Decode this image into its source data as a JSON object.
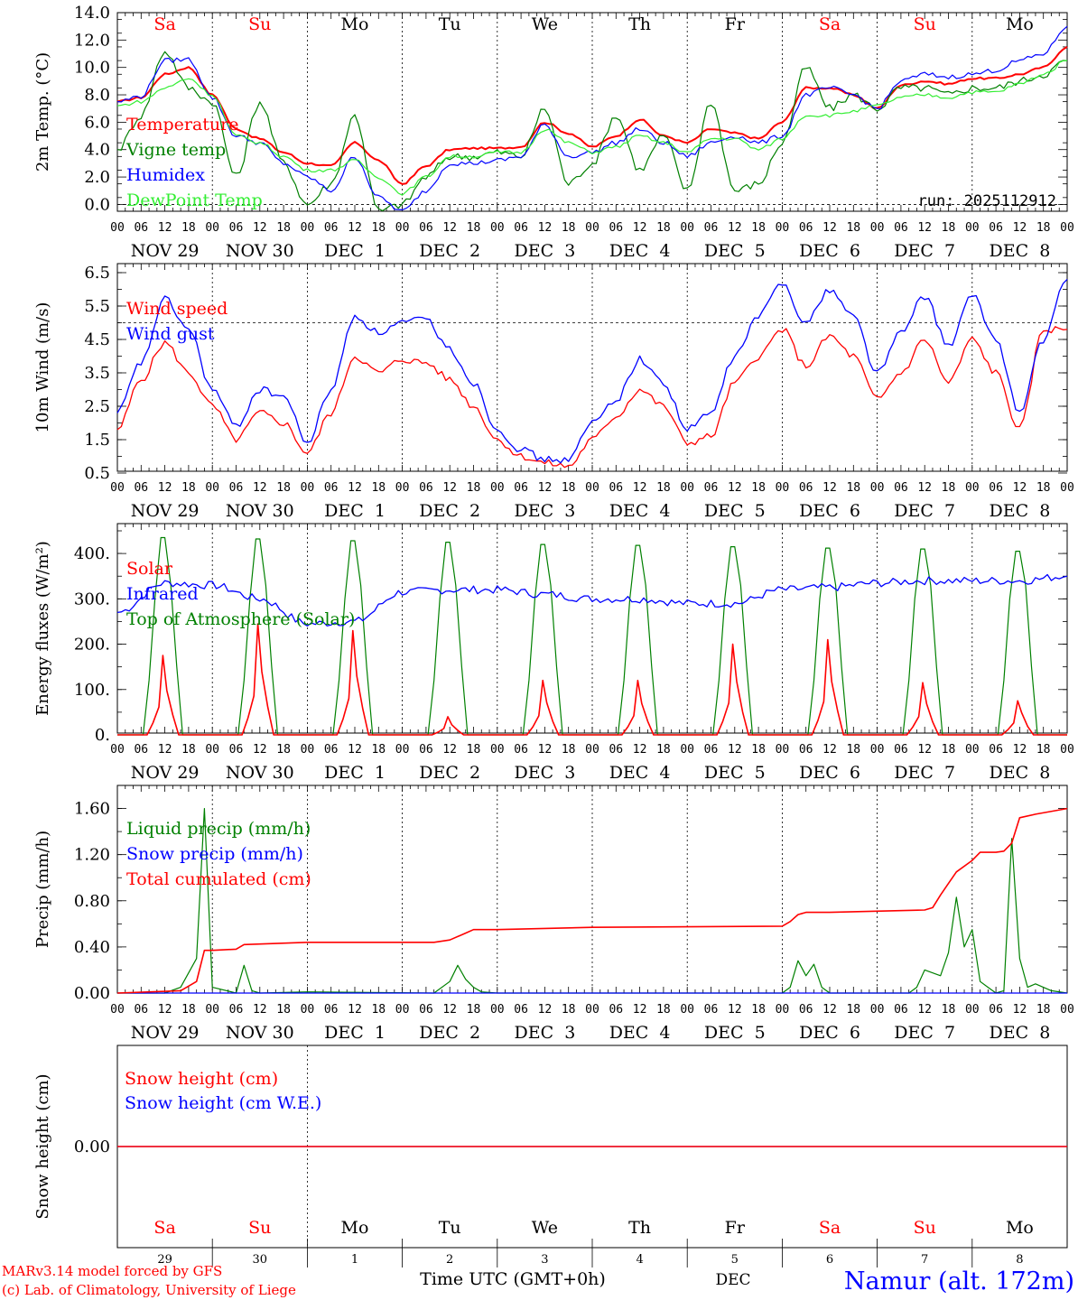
{
  "colors": {
    "red": "#ff0000",
    "green": "#008000",
    "blue": "#0000ff",
    "lightgreen": "#33ee33",
    "black": "#000000"
  },
  "days_top": [
    {
      "label": "Sa",
      "weekend": true
    },
    {
      "label": "Su",
      "weekend": true
    },
    {
      "label": "Mo",
      "weekend": false
    },
    {
      "label": "Tu",
      "weekend": false
    },
    {
      "label": "We",
      "weekend": false
    },
    {
      "label": "Th",
      "weekend": false
    },
    {
      "label": "Fr",
      "weekend": false
    },
    {
      "label": "Sa",
      "weekend": true
    },
    {
      "label": "Su",
      "weekend": true
    },
    {
      "label": "Mo",
      "weekend": false
    }
  ],
  "hour_ticks": [
    "00",
    "06",
    "12",
    "18"
  ],
  "date_labels": [
    "NOV 29",
    "NOV 30",
    "DEC  1",
    "DEC  2",
    "DEC  3",
    "DEC  4",
    "DEC  5",
    "DEC  6",
    "DEC  7",
    "DEC  8"
  ],
  "bottom_day_numbers": [
    "29",
    "30",
    "1",
    "2",
    "3",
    "4",
    "5",
    "6",
    "7",
    "8"
  ],
  "bottom": {
    "xlabel": "Time UTC (GMT+0h)",
    "month": "DEC",
    "credit1": "MARv3.14 model forced by GFS",
    "credit2": "(c) Lab. of Climatology, University of Liege",
    "station": "Namur (alt. 172m)"
  },
  "chart_data": [
    {
      "type": "line",
      "title": "2m Temp. (°C)",
      "ylabel": "2m Temp. (°C)",
      "ylim": [
        -0.5,
        14
      ],
      "yticks": [
        "0.0",
        "2.0",
        "4.0",
        "6.0",
        "8.0",
        "10.0",
        "12.0",
        "14.0"
      ],
      "ytick_values": [
        0,
        2,
        4,
        6,
        8,
        10,
        12,
        14
      ],
      "reference_line": 0,
      "annotation": "run: 2025112912",
      "x_hours": [
        0,
        6,
        12,
        18,
        24,
        30,
        36,
        42,
        48,
        54,
        60,
        66,
        72,
        78,
        84,
        90,
        96,
        102,
        108,
        114,
        120,
        126,
        132,
        138,
        144,
        150,
        156,
        162,
        168,
        174,
        180,
        186,
        192,
        198,
        204,
        210,
        216,
        222,
        228,
        234,
        240
      ],
      "series": [
        {
          "name": "Temperature",
          "color": "red",
          "values": [
            7.5,
            7.8,
            9.5,
            10.0,
            8.0,
            5.5,
            4.8,
            3.8,
            3.0,
            2.8,
            4.5,
            3.2,
            1.5,
            2.8,
            4.0,
            4.1,
            4.1,
            4.2,
            6.0,
            5.2,
            4.2,
            5.0,
            6.2,
            5.0,
            4.5,
            5.5,
            5.2,
            4.8,
            6.0,
            8.5,
            8.5,
            8.0,
            7.0,
            8.7,
            9.0,
            8.8,
            9.2,
            9.2,
            9.5,
            10.0,
            11.5
          ]
        },
        {
          "name": "Vigne temp",
          "color": "green",
          "values": [
            4.0,
            6.5,
            11.2,
            8.5,
            7.5,
            2.0,
            7.5,
            3.0,
            0.0,
            1.5,
            6.5,
            -0.5,
            0.0,
            2.0,
            3.5,
            3.5,
            3.8,
            3.5,
            7.0,
            1.5,
            3.0,
            6.5,
            2.5,
            5.0,
            1.0,
            7.5,
            1.0,
            1.5,
            4.5,
            10.0,
            7.0,
            8.0,
            7.0,
            8.5,
            8.5,
            8.0,
            8.5,
            8.5,
            9.0,
            9.5,
            10.5
          ]
        },
        {
          "name": "Humidex",
          "color": "blue",
          "values": [
            7.5,
            7.9,
            10.5,
            10.6,
            7.8,
            5.0,
            4.5,
            3.0,
            2.0,
            1.0,
            3.5,
            0.5,
            -0.5,
            1.0,
            3.0,
            3.0,
            3.2,
            3.5,
            5.8,
            3.5,
            3.8,
            4.5,
            5.5,
            4.5,
            3.5,
            4.5,
            5.0,
            4.5,
            5.0,
            8.0,
            8.5,
            8.0,
            7.0,
            9.0,
            9.5,
            9.3,
            9.5,
            9.8,
            10.5,
            11.0,
            13.0
          ]
        },
        {
          "name": "DewPoint Temp",
          "color": "lightgreen",
          "values": [
            7.2,
            7.5,
            8.5,
            9.2,
            8.0,
            5.0,
            4.5,
            3.5,
            2.5,
            2.5,
            3.2,
            2.0,
            0.8,
            2.0,
            3.5,
            3.5,
            3.8,
            3.8,
            5.5,
            4.5,
            3.8,
            4.2,
            5.0,
            4.5,
            3.8,
            4.8,
            4.8,
            4.0,
            4.8,
            6.5,
            6.5,
            6.8,
            7.2,
            7.8,
            8.0,
            7.8,
            8.2,
            8.2,
            8.8,
            9.5,
            10.5
          ]
        }
      ]
    },
    {
      "type": "line",
      "title": "10m Wind (m/s)",
      "ylabel": "10m Wind (m/s)",
      "ylim": [
        0.5,
        6.5
      ],
      "yticks": [
        "0.5",
        "1.5",
        "2.5",
        "3.5",
        "4.5",
        "5.5",
        "6.5"
      ],
      "ytick_values": [
        0.5,
        1.5,
        2.5,
        3.5,
        4.5,
        5.5,
        6.5
      ],
      "reference_line": 5,
      "x_hours": [
        0,
        6,
        12,
        18,
        24,
        30,
        36,
        42,
        48,
        54,
        60,
        66,
        72,
        78,
        84,
        90,
        96,
        102,
        108,
        114,
        120,
        126,
        132,
        138,
        144,
        150,
        156,
        162,
        168,
        174,
        180,
        186,
        192,
        198,
        204,
        210,
        216,
        222,
        228,
        234,
        240
      ],
      "series": [
        {
          "name": "Wind speed",
          "color": "red",
          "values": [
            1.8,
            3.3,
            4.4,
            3.5,
            2.5,
            1.5,
            2.3,
            2.0,
            1.1,
            2.3,
            4.0,
            3.5,
            3.9,
            3.8,
            3.3,
            2.5,
            1.5,
            1.0,
            0.8,
            0.7,
            1.5,
            2.2,
            3.0,
            2.5,
            1.4,
            1.6,
            3.2,
            4.0,
            4.8,
            3.7,
            4.6,
            4.0,
            2.7,
            3.5,
            4.5,
            3.2,
            4.5,
            3.5,
            1.8,
            4.8,
            4.8
          ]
        },
        {
          "name": "Wind gust",
          "color": "blue",
          "values": [
            2.3,
            3.8,
            5.7,
            4.8,
            3.0,
            1.9,
            3.0,
            2.8,
            1.4,
            3.0,
            5.2,
            4.7,
            5.0,
            5.1,
            4.2,
            3.2,
            1.8,
            1.2,
            0.9,
            0.9,
            2.0,
            2.7,
            3.9,
            3.2,
            1.8,
            2.3,
            4.0,
            5.2,
            6.2,
            5.0,
            6.0,
            5.2,
            3.5,
            4.7,
            5.8,
            4.3,
            5.8,
            4.5,
            2.3,
            4.5,
            6.3
          ]
        }
      ]
    },
    {
      "type": "line",
      "title": "Energy fluxes (W/m2)",
      "ylabel": "Energy fluxes (W/m²)",
      "ylim": [
        0,
        450
      ],
      "yticks": [
        "0.",
        "100.",
        "200.",
        "300.",
        "400."
      ],
      "ytick_values": [
        0,
        100,
        200,
        300,
        400
      ],
      "series": [
        {
          "name": "Solar",
          "color": "red",
          "day_peaks": [
            175,
            245,
            230,
            40,
            120,
            120,
            200,
            210,
            115,
            75
          ]
        },
        {
          "name": "Infrared",
          "color": "blue",
          "x_hours": [
            0,
            12,
            24,
            36,
            48,
            60,
            72,
            84,
            96,
            108,
            120,
            132,
            144,
            156,
            168,
            180,
            192,
            204,
            216,
            228,
            240
          ],
          "values": [
            270,
            335,
            330,
            300,
            245,
            250,
            315,
            320,
            320,
            310,
            300,
            300,
            290,
            290,
            320,
            325,
            335,
            340,
            340,
            340,
            350
          ]
        },
        {
          "name": "Top of Atmosphere (Solar)",
          "color": "green",
          "day_peaks": [
            435,
            432,
            428,
            425,
            420,
            418,
            415,
            412,
            410,
            405
          ]
        }
      ]
    },
    {
      "type": "line",
      "title": "Precip (mm/h)",
      "ylabel": "Precip (mm/h)",
      "ylim": [
        0,
        1.8
      ],
      "yticks": [
        "0.00",
        "0.40",
        "0.80",
        "1.20",
        "1.60"
      ],
      "ytick_values": [
        0,
        0.4,
        0.8,
        1.2,
        1.6
      ],
      "series": [
        {
          "name": "Liquid precip (mm/h)",
          "color": "green",
          "x_hours": [
            0,
            12,
            16,
            20,
            22,
            24,
            30,
            32,
            34,
            36,
            48,
            80,
            84,
            86,
            88,
            90,
            92,
            96,
            168,
            170,
            172,
            174,
            176,
            178,
            180,
            200,
            202,
            204,
            208,
            210,
            212,
            214,
            216,
            218,
            220,
            222,
            224,
            226,
            228,
            230,
            232,
            236,
            240
          ],
          "values": [
            0,
            0,
            0.05,
            0.3,
            1.6,
            0.05,
            0,
            0.24,
            0.02,
            0,
            0.01,
            0,
            0.1,
            0.24,
            0.12,
            0.05,
            0.01,
            0,
            0,
            0.05,
            0.28,
            0.15,
            0.25,
            0.05,
            0,
            0,
            0.05,
            0.2,
            0.15,
            0.35,
            0.83,
            0.4,
            0.55,
            0.1,
            0.05,
            0,
            0.02,
            1.34,
            0.3,
            0.05,
            0.08,
            0.02,
            0
          ]
        },
        {
          "name": "Snow precip (mm/h)",
          "color": "blue",
          "x_hours": [
            0,
            240
          ],
          "values": [
            0,
            0
          ]
        },
        {
          "name": "Total cumulated (cm)",
          "color": "red",
          "x_hours": [
            0,
            16,
            20,
            22,
            24,
            30,
            32,
            48,
            80,
            84,
            88,
            90,
            96,
            120,
            168,
            170,
            172,
            174,
            180,
            204,
            206,
            208,
            210,
            212,
            216,
            218,
            222,
            224,
            226,
            228,
            232,
            240
          ],
          "values": [
            0,
            0.02,
            0.1,
            0.37,
            0.37,
            0.38,
            0.42,
            0.44,
            0.44,
            0.46,
            0.52,
            0.55,
            0.55,
            0.57,
            0.58,
            0.62,
            0.68,
            0.7,
            0.7,
            0.72,
            0.74,
            0.85,
            0.95,
            1.05,
            1.15,
            1.22,
            1.22,
            1.23,
            1.3,
            1.52,
            1.55,
            1.6
          ]
        }
      ]
    },
    {
      "type": "line",
      "title": "Snow height (cm)",
      "ylabel": "Snow height (cm)",
      "yticks": [
        "0.00"
      ],
      "ytick_values": [
        0
      ],
      "series": [
        {
          "name": "Snow height (cm)",
          "color": "red",
          "x_hours": [
            0,
            240
          ],
          "values": [
            0,
            0
          ]
        },
        {
          "name": "Snow height (cm W.E.)",
          "color": "blue",
          "x_hours": [
            0,
            240
          ],
          "values": [
            0,
            0
          ]
        }
      ]
    }
  ]
}
